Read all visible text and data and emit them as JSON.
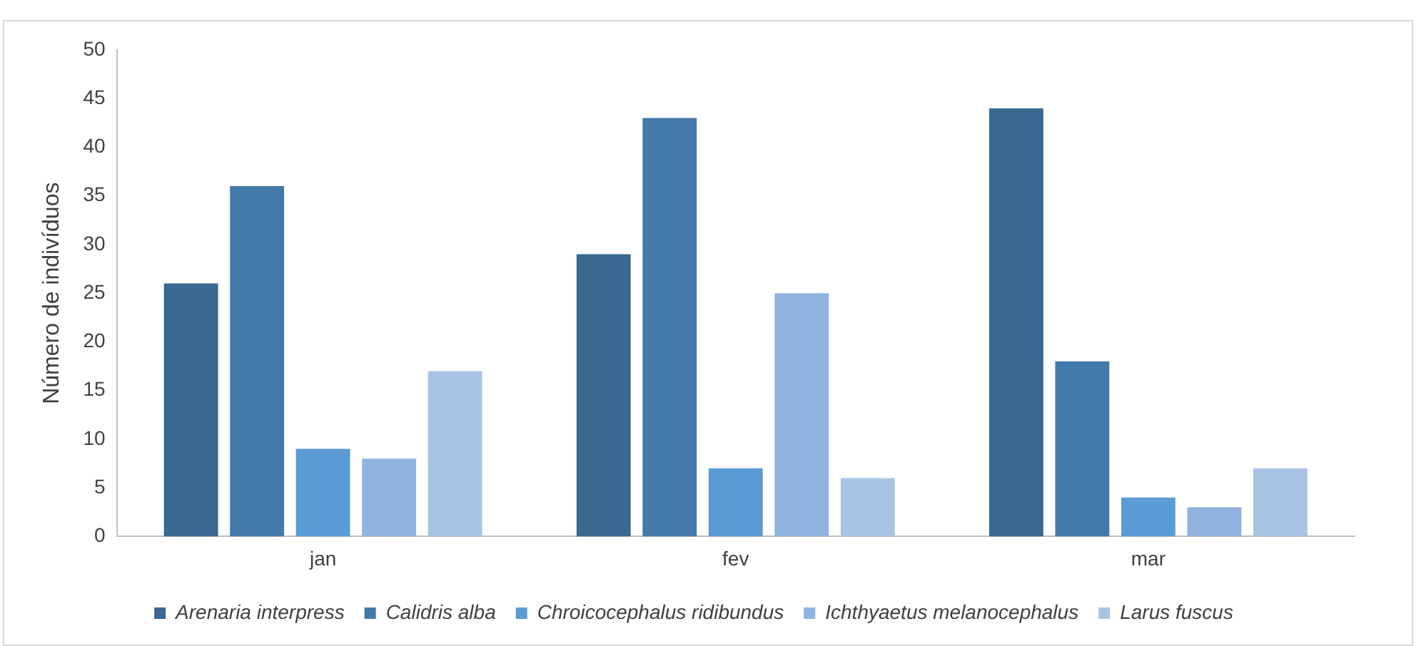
{
  "chart_data": {
    "type": "bar",
    "ylabel": "Número de indivíduos",
    "categories": [
      "jan",
      "fev",
      "mar"
    ],
    "series": [
      {
        "name": "Arenaria interpress",
        "color": "#396891",
        "values": [
          26,
          29,
          44
        ]
      },
      {
        "name": "Calidris alba",
        "color": "#4279a9",
        "values": [
          36,
          43,
          18
        ]
      },
      {
        "name": "Chroicocephalus ridibundus",
        "color": "#5b9bd5",
        "values": [
          9,
          7,
          4
        ]
      },
      {
        "name": "Ichthyaetus melanocephalus",
        "color": "#8eb3df",
        "values": [
          8,
          25,
          3
        ]
      },
      {
        "name": "Larus fuscus",
        "color": "#a9c3e5",
        "values": [
          17,
          6,
          7
        ]
      }
    ],
    "ylim": [
      0,
      50
    ],
    "yticks": [
      0,
      5,
      10,
      15,
      20,
      25,
      30,
      35,
      40,
      45,
      50
    ],
    "grid": false,
    "legend": "bottom"
  }
}
